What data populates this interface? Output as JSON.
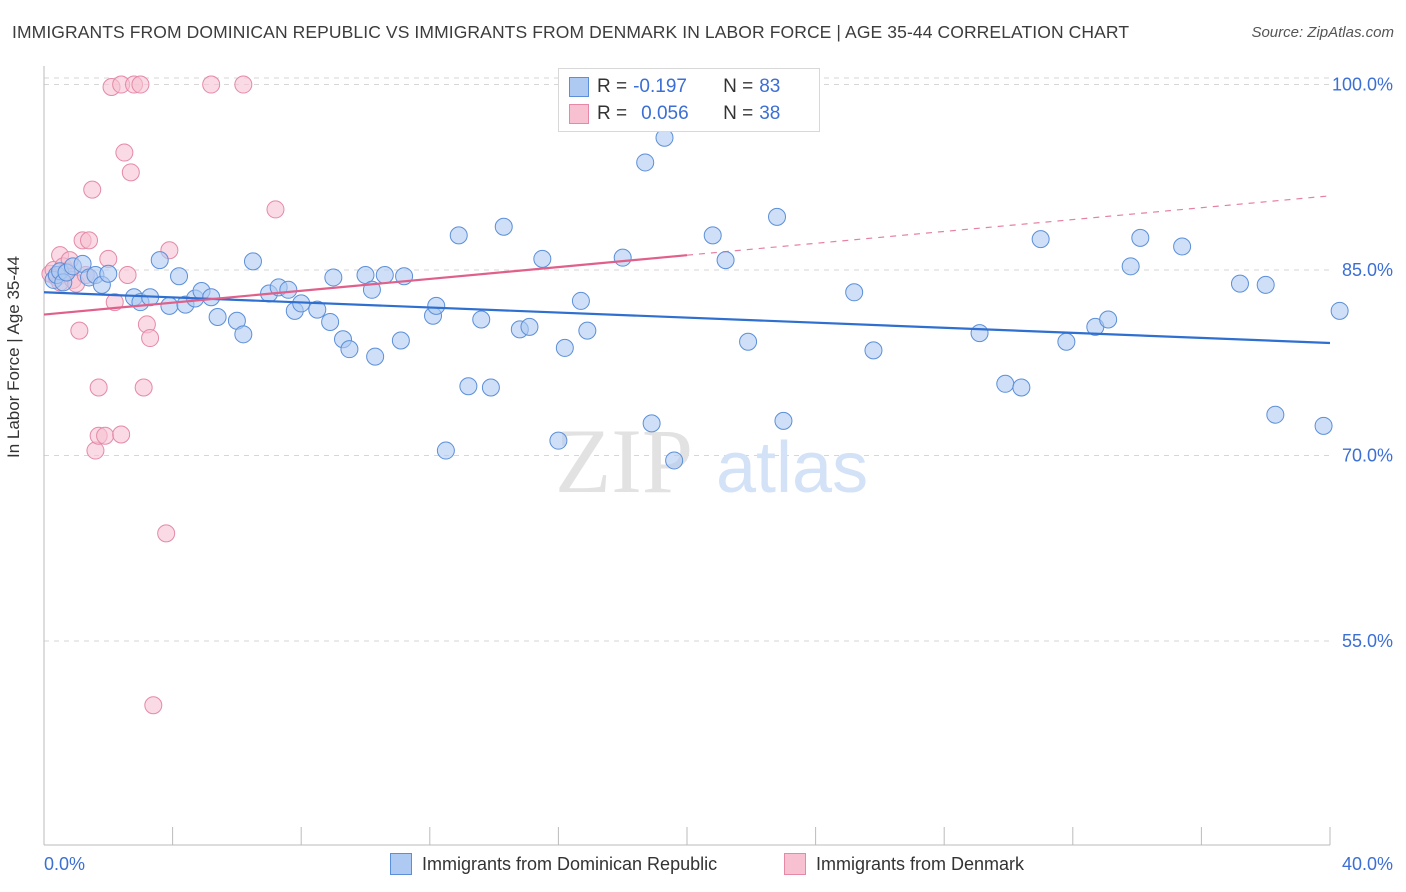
{
  "title": "IMMIGRANTS FROM DOMINICAN REPUBLIC VS IMMIGRANTS FROM DENMARK IN LABOR FORCE | AGE 35-44 CORRELATION CHART",
  "source": "Source: ZipAtlas.com",
  "watermark": {
    "zip": "ZIP",
    "atlas": "atlas"
  },
  "legend": {
    "r_label": "R =",
    "n_label": "N =",
    "series": [
      {
        "name": "Immigrants from Dominican Republic",
        "r": "-0.197",
        "n": "83"
      },
      {
        "name": "Immigrants from Denmark",
        "r": "0.056",
        "n": "38"
      }
    ]
  },
  "colors": {
    "blue_fill": "#aec9f2",
    "blue_stroke": "#5b8fd9",
    "blue_line": "#2f6fd0",
    "pink_fill": "#f7c1d2",
    "pink_stroke": "#e589a7",
    "pink_line": "#e0608a",
    "tick_text": "#3b6fd4",
    "grid": "#d6d6d6"
  },
  "chart_data": {
    "type": "scatter",
    "title": "IMMIGRANTS FROM DOMINICAN REPUBLIC VS IMMIGRANTS FROM DENMARK IN LABOR FORCE | AGE 35-44 CORRELATION CHART",
    "xlabel": "",
    "ylabel": "In Labor Force | Age 35-44",
    "xlim": [
      0,
      40
    ],
    "ylim": [
      38.5,
      101.5
    ],
    "x_tick_labels": [
      "0.0%",
      "40.0%"
    ],
    "y_ticks": [
      55,
      70,
      85,
      100
    ],
    "y_tick_labels": [
      "55.0%",
      "70.0%",
      "85.0%",
      "100.0%"
    ],
    "grid": "horizontal dashed",
    "series": [
      {
        "name": "Immigrants from Dominican Republic",
        "color": "#5b8fd9",
        "trend": {
          "x": [
            0,
            40
          ],
          "y": [
            83.2,
            79.1
          ],
          "dashed_from": null
        },
        "points": [
          [
            0.3,
            84.2
          ],
          [
            0.4,
            84.6
          ],
          [
            0.5,
            84.9
          ],
          [
            0.6,
            84.0
          ],
          [
            0.7,
            84.8
          ],
          [
            0.9,
            85.3
          ],
          [
            1.2,
            85.5
          ],
          [
            1.4,
            84.4
          ],
          [
            1.6,
            84.6
          ],
          [
            1.8,
            83.8
          ],
          [
            2.0,
            84.7
          ],
          [
            2.8,
            82.8
          ],
          [
            3.0,
            82.4
          ],
          [
            3.3,
            82.8
          ],
          [
            3.6,
            85.8
          ],
          [
            3.9,
            82.1
          ],
          [
            4.2,
            84.5
          ],
          [
            4.4,
            82.2
          ],
          [
            4.7,
            82.7
          ],
          [
            4.9,
            83.3
          ],
          [
            5.2,
            82.8
          ],
          [
            5.4,
            81.2
          ],
          [
            6.0,
            80.9
          ],
          [
            6.2,
            79.8
          ],
          [
            6.5,
            85.7
          ],
          [
            7.0,
            83.1
          ],
          [
            7.3,
            83.6
          ],
          [
            7.6,
            83.4
          ],
          [
            7.8,
            81.7
          ],
          [
            8.0,
            82.3
          ],
          [
            8.5,
            81.8
          ],
          [
            8.9,
            80.8
          ],
          [
            9.0,
            84.4
          ],
          [
            9.3,
            79.4
          ],
          [
            9.5,
            78.6
          ],
          [
            10.0,
            84.6
          ],
          [
            10.2,
            83.4
          ],
          [
            10.3,
            78.0
          ],
          [
            10.6,
            84.6
          ],
          [
            11.1,
            79.3
          ],
          [
            11.2,
            84.5
          ],
          [
            12.1,
            81.3
          ],
          [
            12.2,
            82.1
          ],
          [
            12.5,
            70.4
          ],
          [
            12.9,
            87.8
          ],
          [
            13.2,
            75.6
          ],
          [
            13.6,
            81.0
          ],
          [
            13.9,
            75.5
          ],
          [
            14.3,
            88.5
          ],
          [
            14.8,
            80.2
          ],
          [
            15.1,
            80.4
          ],
          [
            15.5,
            85.9
          ],
          [
            16.0,
            71.2
          ],
          [
            16.2,
            78.7
          ],
          [
            16.7,
            82.5
          ],
          [
            16.9,
            80.1
          ],
          [
            18.0,
            86.0
          ],
          [
            18.7,
            93.7
          ],
          [
            18.9,
            72.6
          ],
          [
            19.3,
            95.7
          ],
          [
            19.6,
            69.6
          ],
          [
            20.8,
            87.8
          ],
          [
            21.2,
            85.8
          ],
          [
            21.9,
            79.2
          ],
          [
            22.8,
            89.3
          ],
          [
            23.0,
            72.8
          ],
          [
            25.2,
            83.2
          ],
          [
            25.8,
            78.5
          ],
          [
            29.1,
            79.9
          ],
          [
            29.9,
            75.8
          ],
          [
            30.4,
            75.5
          ],
          [
            31.0,
            87.5
          ],
          [
            31.8,
            79.2
          ],
          [
            32.7,
            80.4
          ],
          [
            33.1,
            81.0
          ],
          [
            33.8,
            85.3
          ],
          [
            34.1,
            87.6
          ],
          [
            35.4,
            86.9
          ],
          [
            37.2,
            83.9
          ],
          [
            38.0,
            83.8
          ],
          [
            38.3,
            73.3
          ],
          [
            39.8,
            72.4
          ],
          [
            40.3,
            81.7
          ]
        ]
      },
      {
        "name": "Immigrants from Denmark",
        "color": "#e589a7",
        "trend": {
          "x": [
            0,
            40
          ],
          "y": [
            81.4,
            91.0
          ],
          "dashed_from": 20
        },
        "points": [
          [
            0.2,
            84.7
          ],
          [
            0.3,
            85.0
          ],
          [
            0.4,
            84.4
          ],
          [
            0.5,
            86.2
          ],
          [
            0.5,
            84.0
          ],
          [
            0.6,
            85.3
          ],
          [
            0.7,
            84.9
          ],
          [
            0.8,
            85.8
          ],
          [
            0.9,
            84.2
          ],
          [
            1.0,
            83.9
          ],
          [
            1.1,
            80.1
          ],
          [
            1.2,
            87.4
          ],
          [
            1.3,
            84.6
          ],
          [
            1.4,
            87.4
          ],
          [
            1.5,
            91.5
          ],
          [
            1.6,
            70.4
          ],
          [
            1.7,
            71.6
          ],
          [
            1.7,
            75.5
          ],
          [
            1.9,
            71.6
          ],
          [
            2.0,
            85.9
          ],
          [
            2.1,
            99.8
          ],
          [
            2.2,
            82.4
          ],
          [
            2.4,
            100.0
          ],
          [
            2.4,
            71.7
          ],
          [
            2.5,
            94.5
          ],
          [
            2.6,
            84.6
          ],
          [
            2.7,
            92.9
          ],
          [
            2.8,
            100.0
          ],
          [
            3.0,
            100.0
          ],
          [
            3.1,
            75.5
          ],
          [
            3.2,
            80.6
          ],
          [
            3.3,
            79.5
          ],
          [
            3.4,
            49.8
          ],
          [
            3.8,
            63.7
          ],
          [
            3.9,
            86.6
          ],
          [
            5.2,
            100.0
          ],
          [
            6.2,
            100.0
          ],
          [
            7.2,
            89.9
          ]
        ]
      }
    ]
  }
}
